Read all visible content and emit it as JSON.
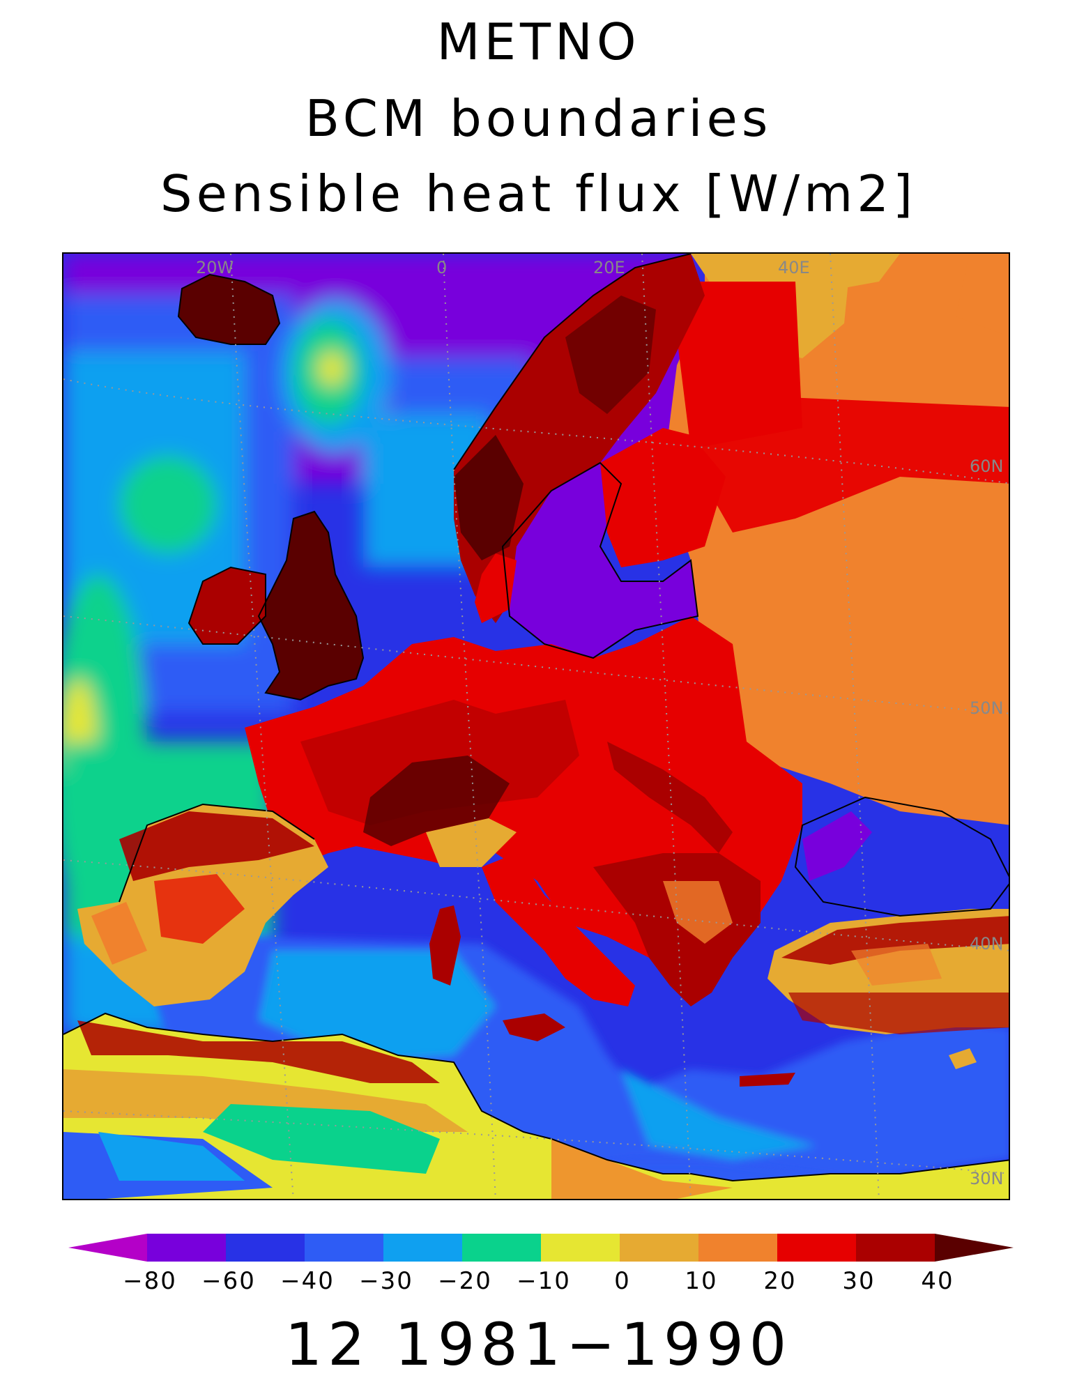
{
  "title": {
    "line1": "METNO",
    "line2": "BCM boundaries",
    "line3": "Sensible heat flux [W/m2]"
  },
  "period_label": "12 1981−1990",
  "map": {
    "grid_labels": {
      "lon": [
        "20W",
        "0",
        "20E",
        "40E"
      ],
      "lat": [
        "60N",
        "50N",
        "40N",
        "30N"
      ]
    },
    "regions_shown": [
      "Iceland",
      "British Isles",
      "Scandinavia",
      "Iberia",
      "Italy",
      "Balkans",
      "Anatolia",
      "North Africa",
      "Mediterranean Sea",
      "Black Sea",
      "Atlantic Ocean",
      "Eastern Europe"
    ]
  },
  "colorbar": {
    "ticks": [
      "−80",
      "−60",
      "−40",
      "−30",
      "−20",
      "−10",
      "0",
      "10",
      "20",
      "30",
      "40"
    ],
    "colors": [
      "#b400c8",
      "#7800dc",
      "#2832e6",
      "#2e5cf5",
      "#0fa0f0",
      "#0ad28c",
      "#e6e632",
      "#e6aa32",
      "#f0822d",
      "#e60000",
      "#aa0000",
      "#5a0000"
    ]
  }
}
